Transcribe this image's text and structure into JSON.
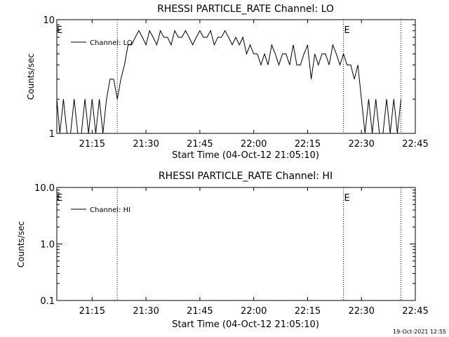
{
  "footer_timestamp": "19-Oct-2021 12:55",
  "chart_data": [
    {
      "type": "line",
      "title": "RHESSI PARTICLE_RATE Channel: LO",
      "xlabel": "Start Time (04-Oct-12 21:05:10)",
      "ylabel": "Counts/sec",
      "yscale": "log",
      "ylim": [
        1,
        10
      ],
      "ytick_labels": [
        "1",
        "10"
      ],
      "xlim": [
        "21:05:10",
        "22:45:00"
      ],
      "xtick_labels": [
        "21:15",
        "21:30",
        "21:45",
        "22:00",
        "22:15",
        "22:30",
        "22:45"
      ],
      "grid": false,
      "legend": "top-left",
      "vline_label": "E",
      "vlines": [
        "21:22",
        "22:25",
        "22:41"
      ],
      "series": [
        {
          "name": "Channel: LO",
          "x": [
            "21:05",
            "21:06",
            "21:07",
            "21:08",
            "21:09",
            "21:10",
            "21:11",
            "21:12",
            "21:13",
            "21:14",
            "21:15",
            "21:16",
            "21:17",
            "21:18",
            "21:19",
            "21:20",
            "21:21",
            "21:22",
            "21:23",
            "21:24",
            "21:25",
            "21:26",
            "21:27",
            "21:28",
            "21:29",
            "21:30",
            "21:31",
            "21:32",
            "21:33",
            "21:34",
            "21:35",
            "21:36",
            "21:37",
            "21:38",
            "21:39",
            "21:40",
            "21:41",
            "21:42",
            "21:43",
            "21:44",
            "21:45",
            "21:46",
            "21:47",
            "21:48",
            "21:49",
            "21:50",
            "21:51",
            "21:52",
            "21:53",
            "21:54",
            "21:55",
            "21:56",
            "21:57",
            "21:58",
            "21:59",
            "22:00",
            "22:01",
            "22:02",
            "22:03",
            "22:04",
            "22:05",
            "22:06",
            "22:07",
            "22:08",
            "22:09",
            "22:10",
            "22:11",
            "22:12",
            "22:13",
            "22:14",
            "22:15",
            "22:16",
            "22:17",
            "22:18",
            "22:19",
            "22:20",
            "22:21",
            "22:22",
            "22:23",
            "22:24",
            "22:25",
            "22:26",
            "22:27",
            "22:28",
            "22:29",
            "22:30",
            "22:31",
            "22:32",
            "22:33",
            "22:34",
            "22:35",
            "22:36",
            "22:37",
            "22:38",
            "22:39",
            "22:40",
            "22:41"
          ],
          "y": [
            2,
            1,
            2,
            1,
            1,
            2,
            1,
            1,
            2,
            1,
            2,
            1,
            2,
            1,
            2,
            3,
            3,
            2,
            3,
            4,
            6,
            6,
            7,
            8,
            7,
            6,
            8,
            7,
            6,
            8,
            7,
            7,
            6,
            8,
            7,
            7,
            8,
            7,
            6,
            7,
            8,
            7,
            7,
            8,
            6,
            7,
            7,
            8,
            7,
            6,
            7,
            6,
            7,
            5,
            6,
            5,
            5,
            4,
            5,
            4,
            6,
            5,
            4,
            5,
            5,
            4,
            6,
            4,
            4,
            5,
            6,
            3,
            5,
            4,
            5,
            5,
            4,
            6,
            5,
            4,
            5,
            4,
            4,
            3,
            4,
            2,
            1,
            2,
            1,
            2,
            1,
            1,
            2,
            1,
            2,
            1,
            2
          ]
        }
      ]
    },
    {
      "type": "line",
      "title": "RHESSI PARTICLE_RATE Channel: HI",
      "xlabel": "Start Time (04-Oct-12 21:05:10)",
      "ylabel": "Counts/sec",
      "yscale": "log",
      "ylim": [
        0.1,
        10
      ],
      "ytick_labels": [
        "0.1",
        "1.0",
        "10.0"
      ],
      "xlim": [
        "21:05:10",
        "22:45:00"
      ],
      "xtick_labels": [
        "21:15",
        "21:30",
        "21:45",
        "22:00",
        "22:15",
        "22:30",
        "22:45"
      ],
      "grid": false,
      "legend": "top-left",
      "vline_label": "E",
      "vlines": [
        "21:22",
        "22:25",
        "22:41"
      ],
      "series": [
        {
          "name": "Channel: HI",
          "x": [],
          "y": []
        }
      ]
    }
  ]
}
